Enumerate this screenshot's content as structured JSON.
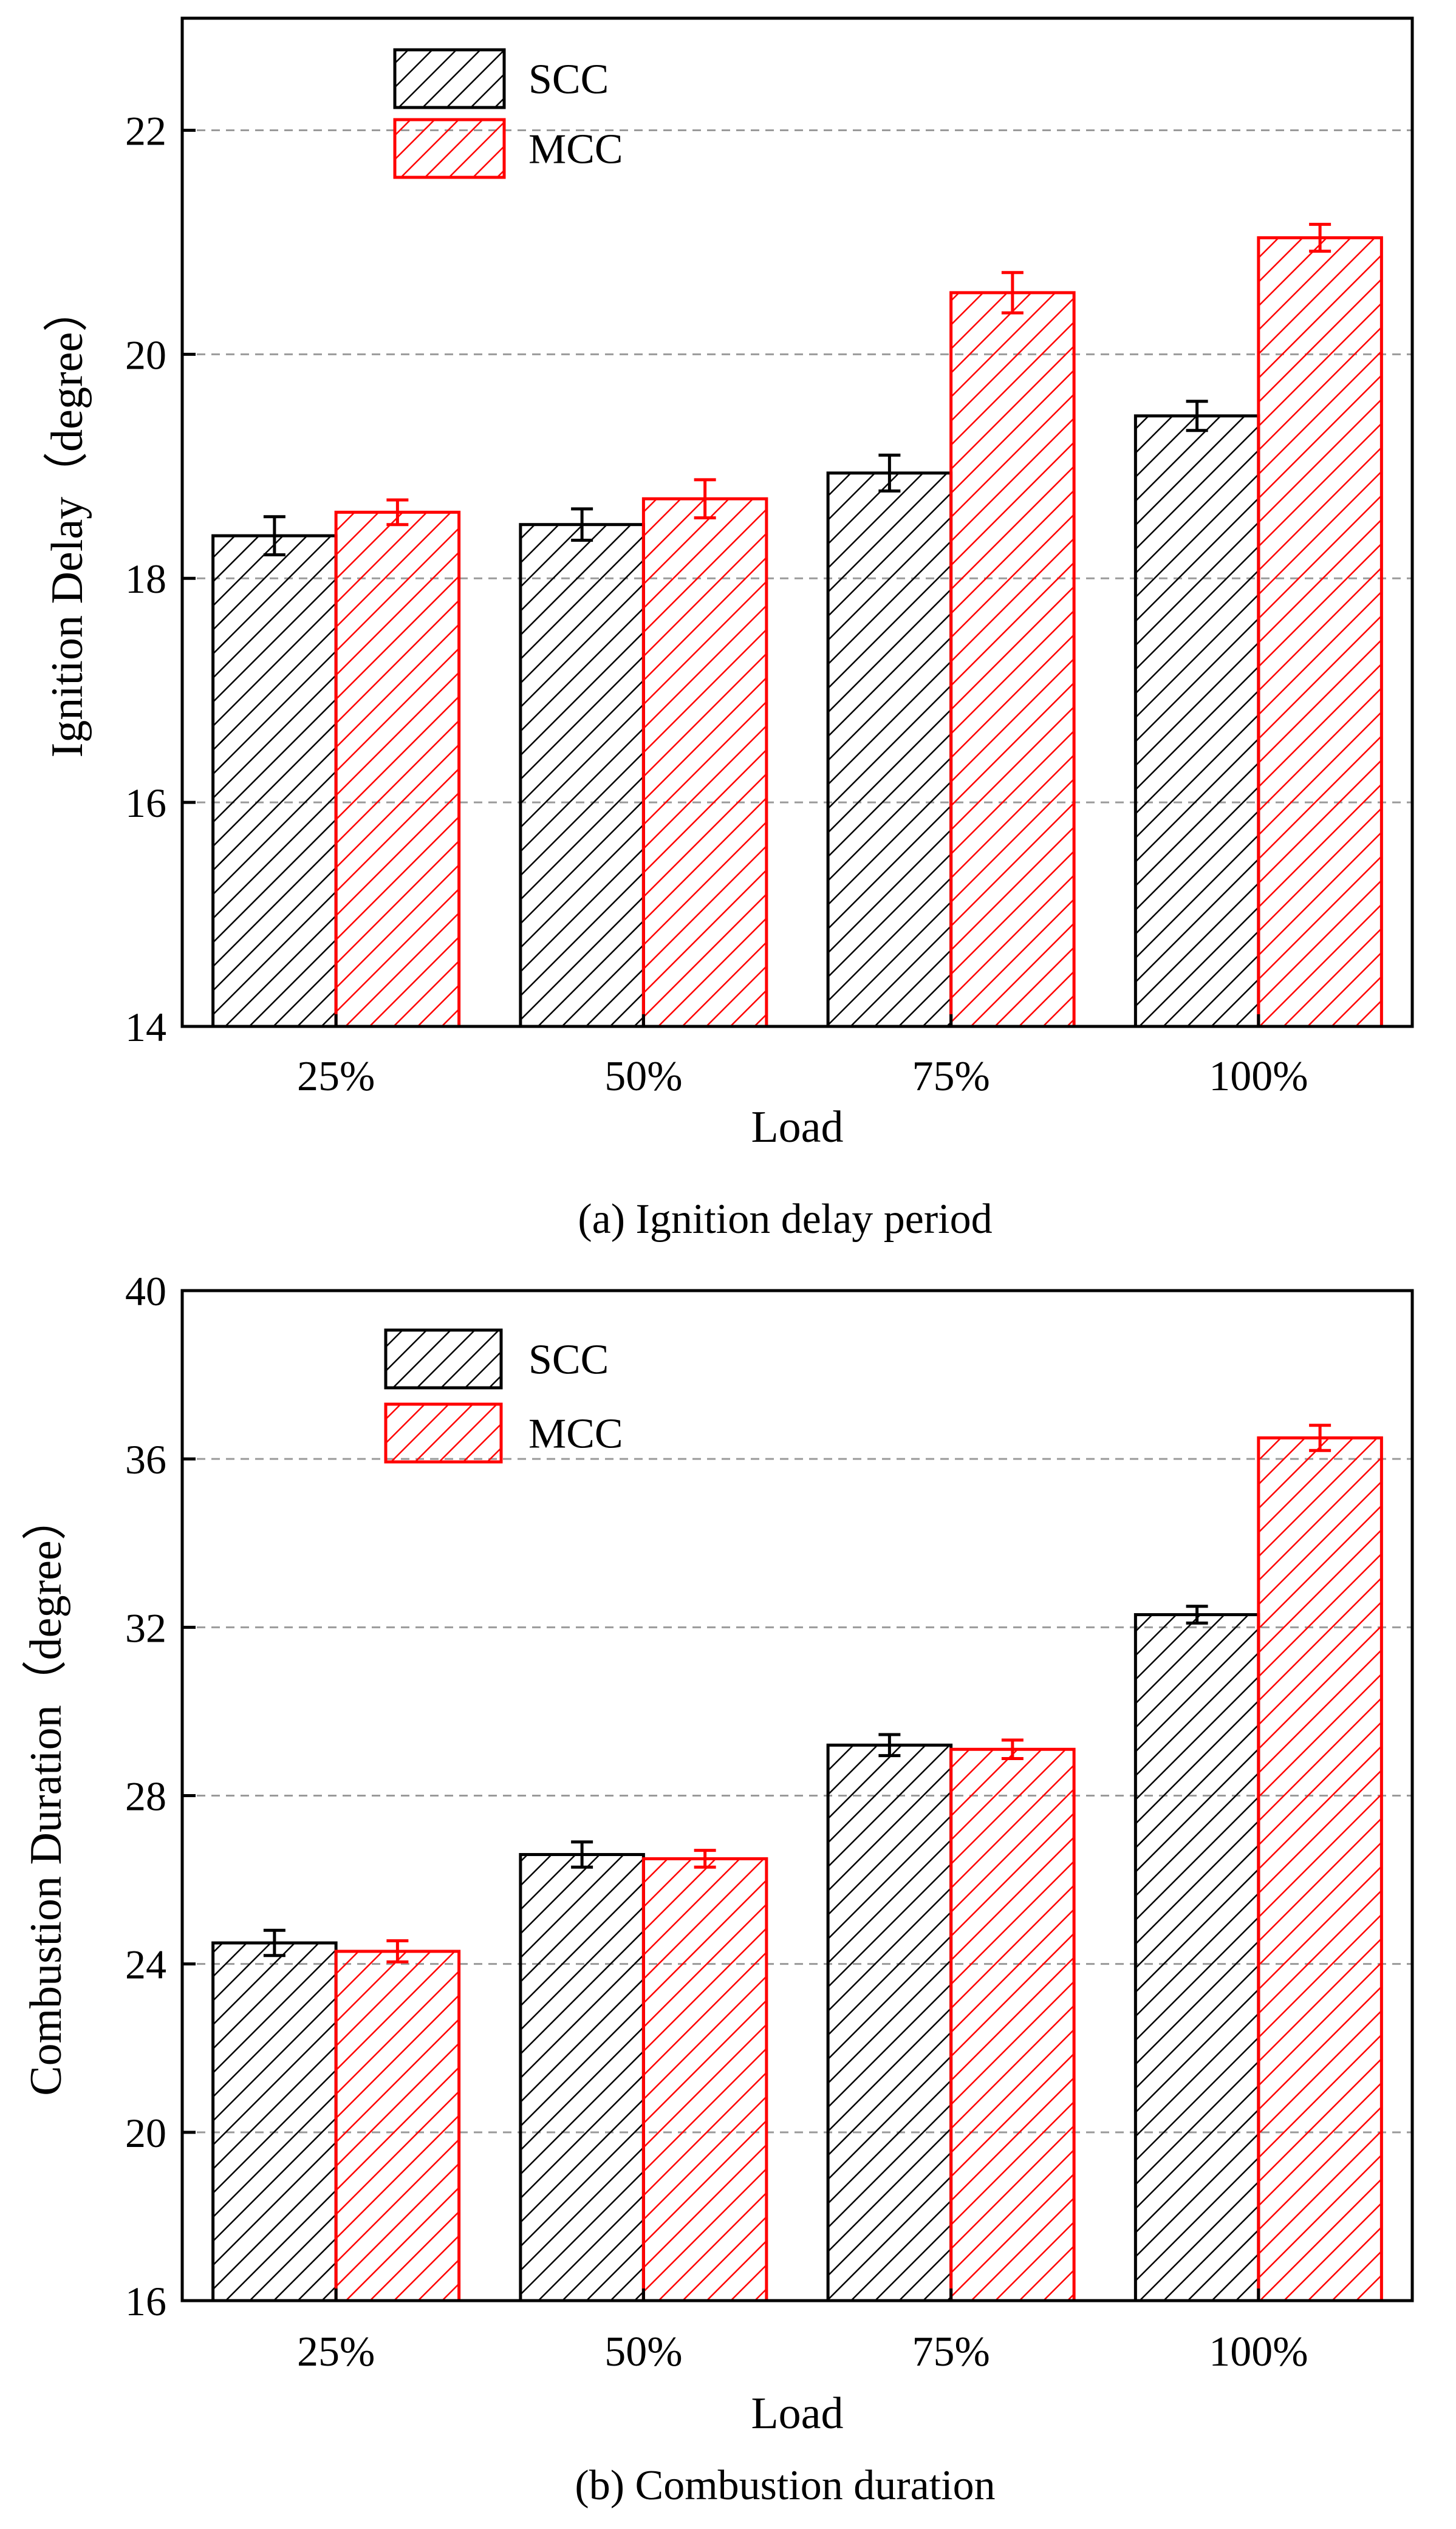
{
  "colors": {
    "scc": "#000000",
    "mcc": "#ff0000",
    "grid": "#9a9a9a",
    "axis": "#000000"
  },
  "chart_data": [
    {
      "type": "bar",
      "caption": "(a) Ignition delay period",
      "xlabel": "Load",
      "ylabel": "Ignition Delay（degree）",
      "categories": [
        "25%",
        "50%",
        "75%",
        "100%"
      ],
      "ylim": [
        14,
        23
      ],
      "yticks": [
        "14",
        "16",
        "18",
        "20",
        "22"
      ],
      "grid": true,
      "legend_position": "top-left",
      "series": [
        {
          "name": "SCC",
          "values": [
            18.38,
            18.48,
            18.94,
            19.45
          ],
          "errors": [
            0.17,
            0.14,
            0.16,
            0.13
          ]
        },
        {
          "name": "MCC",
          "values": [
            18.59,
            18.71,
            20.55,
            21.04
          ],
          "errors": [
            0.11,
            0.17,
            0.18,
            0.12
          ]
        }
      ]
    },
    {
      "type": "bar",
      "caption": "(b) Combustion duration",
      "xlabel": "Load",
      "ylabel": "Combustion Duration（degree）",
      "categories": [
        "25%",
        "50%",
        "75%",
        "100%"
      ],
      "ylim": [
        16,
        40
      ],
      "yticks": [
        "16",
        "20",
        "24",
        "28",
        "32",
        "36",
        "40"
      ],
      "grid": true,
      "legend_position": "top-left",
      "series": [
        {
          "name": "SCC",
          "values": [
            24.5,
            26.6,
            29.2,
            32.3
          ],
          "errors": [
            0.3,
            0.3,
            0.25,
            0.2
          ]
        },
        {
          "name": "MCC",
          "values": [
            24.3,
            26.5,
            29.1,
            36.5
          ],
          "errors": [
            0.25,
            0.2,
            0.22,
            0.3
          ]
        }
      ]
    }
  ]
}
